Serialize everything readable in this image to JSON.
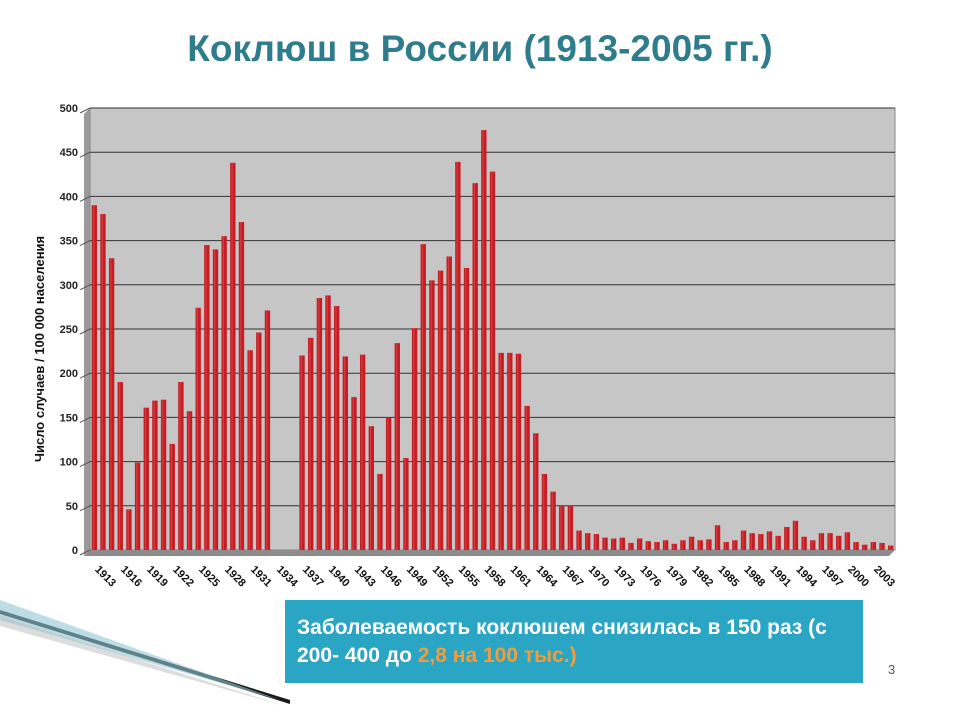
{
  "title": "Коклюш в России (1913-2005 гг.)",
  "note": {
    "text_main": "Заболеваемость коклюшем снизилась в 150 раз (с 200- 400 до ",
    "text_highlight": "2,8 на 100 тыс.)"
  },
  "slide_number": "3",
  "colors": {
    "bar": "#c41e24",
    "bar_highlight": "#e8555a",
    "plot_bg": "#c6c6c6",
    "title": "#2f7d8c",
    "note_bg": "#2aa6c4",
    "highlight": "#f39c3a"
  },
  "chart_data": {
    "type": "bar",
    "title": "",
    "xlabel": "",
    "ylabel": "Число случаев / 100 000 населения",
    "ylim": [
      0,
      500
    ],
    "yticks": [
      0,
      50,
      100,
      150,
      200,
      250,
      300,
      350,
      400,
      450,
      500
    ],
    "grid": true,
    "x_tick_labels": [
      "1913",
      "1916",
      "1919",
      "1922",
      "1925",
      "1928",
      "1931",
      "1934",
      "1937",
      "1940",
      "1943",
      "1946",
      "1949",
      "1952",
      "1955",
      "1958",
      "1961",
      "1964",
      "1967",
      "1970",
      "1973",
      "1976",
      "1979",
      "1982",
      "1985",
      "1988",
      "1991",
      "1994",
      "1997",
      "2000",
      "2003"
    ],
    "categories": [
      "1913",
      "1914",
      "1915",
      "1916",
      "1917",
      "1918",
      "1919",
      "1920",
      "1921",
      "1922",
      "1923",
      "1924",
      "1925",
      "1926",
      "1927",
      "1928",
      "1929",
      "1930",
      "1931",
      "1932",
      "1933",
      "1934",
      "1935",
      "1936",
      "1937",
      "1938",
      "1939",
      "1940",
      "1941",
      "1942",
      "1943",
      "1944",
      "1945",
      "1946",
      "1947",
      "1948",
      "1949",
      "1950",
      "1951",
      "1952",
      "1953",
      "1954",
      "1955",
      "1956",
      "1957",
      "1958",
      "1959",
      "1960",
      "1961",
      "1962",
      "1963",
      "1964",
      "1965",
      "1966",
      "1967",
      "1968",
      "1969",
      "1970",
      "1971",
      "1972",
      "1973",
      "1974",
      "1975",
      "1976",
      "1977",
      "1978",
      "1979",
      "1980",
      "1981",
      "1982",
      "1983",
      "1984",
      "1985",
      "1986",
      "1987",
      "1988",
      "1989",
      "1990",
      "1991",
      "1992",
      "1993",
      "1994",
      "1995",
      "1996",
      "1997",
      "1998",
      "1999",
      "2000",
      "2001",
      "2002",
      "2003",
      "2004",
      "2005"
    ],
    "values": [
      390,
      380,
      330,
      190,
      46,
      99,
      161,
      169,
      170,
      120,
      190,
      157,
      274,
      345,
      340,
      355,
      438,
      371,
      226,
      246,
      271,
      null,
      null,
      null,
      220,
      240,
      285,
      288,
      276,
      219,
      173,
      221,
      140,
      86,
      150,
      234,
      104,
      251,
      346,
      305,
      316,
      332,
      439,
      319,
      415,
      475,
      428,
      223,
      223,
      222,
      163,
      132,
      86,
      66,
      50,
      50,
      22,
      19,
      18,
      14,
      13,
      14,
      8,
      13,
      10,
      9,
      11,
      7,
      11,
      15,
      11,
      12,
      28,
      9,
      11,
      22,
      19,
      18,
      21,
      16,
      26,
      33,
      15,
      11,
      19,
      19,
      16,
      20,
      9,
      6,
      9,
      8,
      5
    ]
  }
}
